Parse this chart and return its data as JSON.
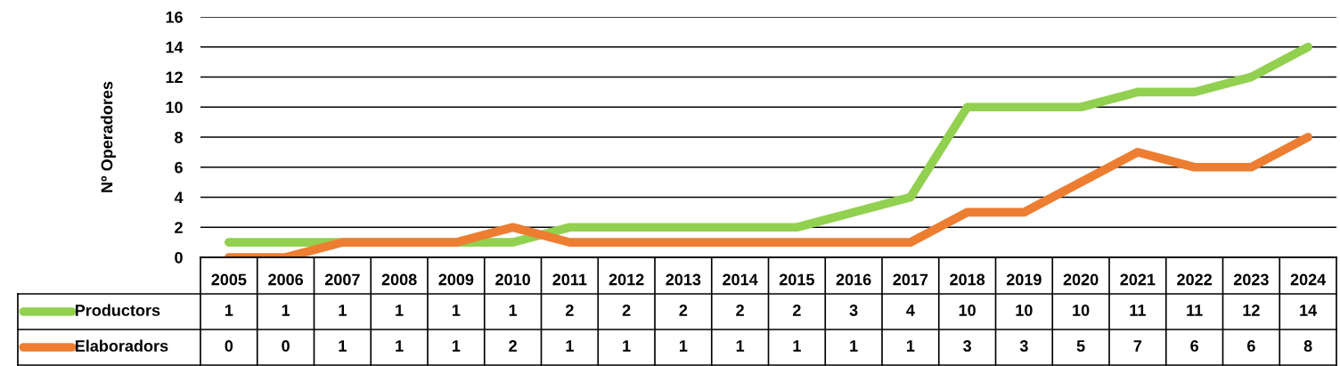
{
  "chart_data": {
    "type": "line",
    "ylabel": "Nº Operadores",
    "categories": [
      "2005",
      "2006",
      "2007",
      "2008",
      "2009",
      "2010",
      "2011",
      "2012",
      "2013",
      "2014",
      "2015",
      "2016",
      "2017",
      "2018",
      "2019",
      "2020",
      "2021",
      "2022",
      "2023",
      "2024"
    ],
    "series": [
      {
        "name": "Productors",
        "color": "#92d050",
        "values": [
          1,
          1,
          1,
          1,
          1,
          1,
          2,
          2,
          2,
          2,
          2,
          3,
          4,
          10,
          10,
          10,
          11,
          11,
          12,
          14
        ]
      },
      {
        "name": "Elaboradors",
        "color": "#ed7d31",
        "values": [
          0,
          0,
          1,
          1,
          1,
          2,
          1,
          1,
          1,
          1,
          1,
          1,
          1,
          3,
          3,
          5,
          7,
          6,
          6,
          8
        ]
      }
    ],
    "ylim": [
      0,
      16
    ],
    "yticks": [
      0,
      2,
      4,
      6,
      8,
      10,
      12,
      14,
      16
    ],
    "grid": "y",
    "legend": "bottom left",
    "data_labels": true,
    "marker": "none",
    "line_style": "solid"
  }
}
